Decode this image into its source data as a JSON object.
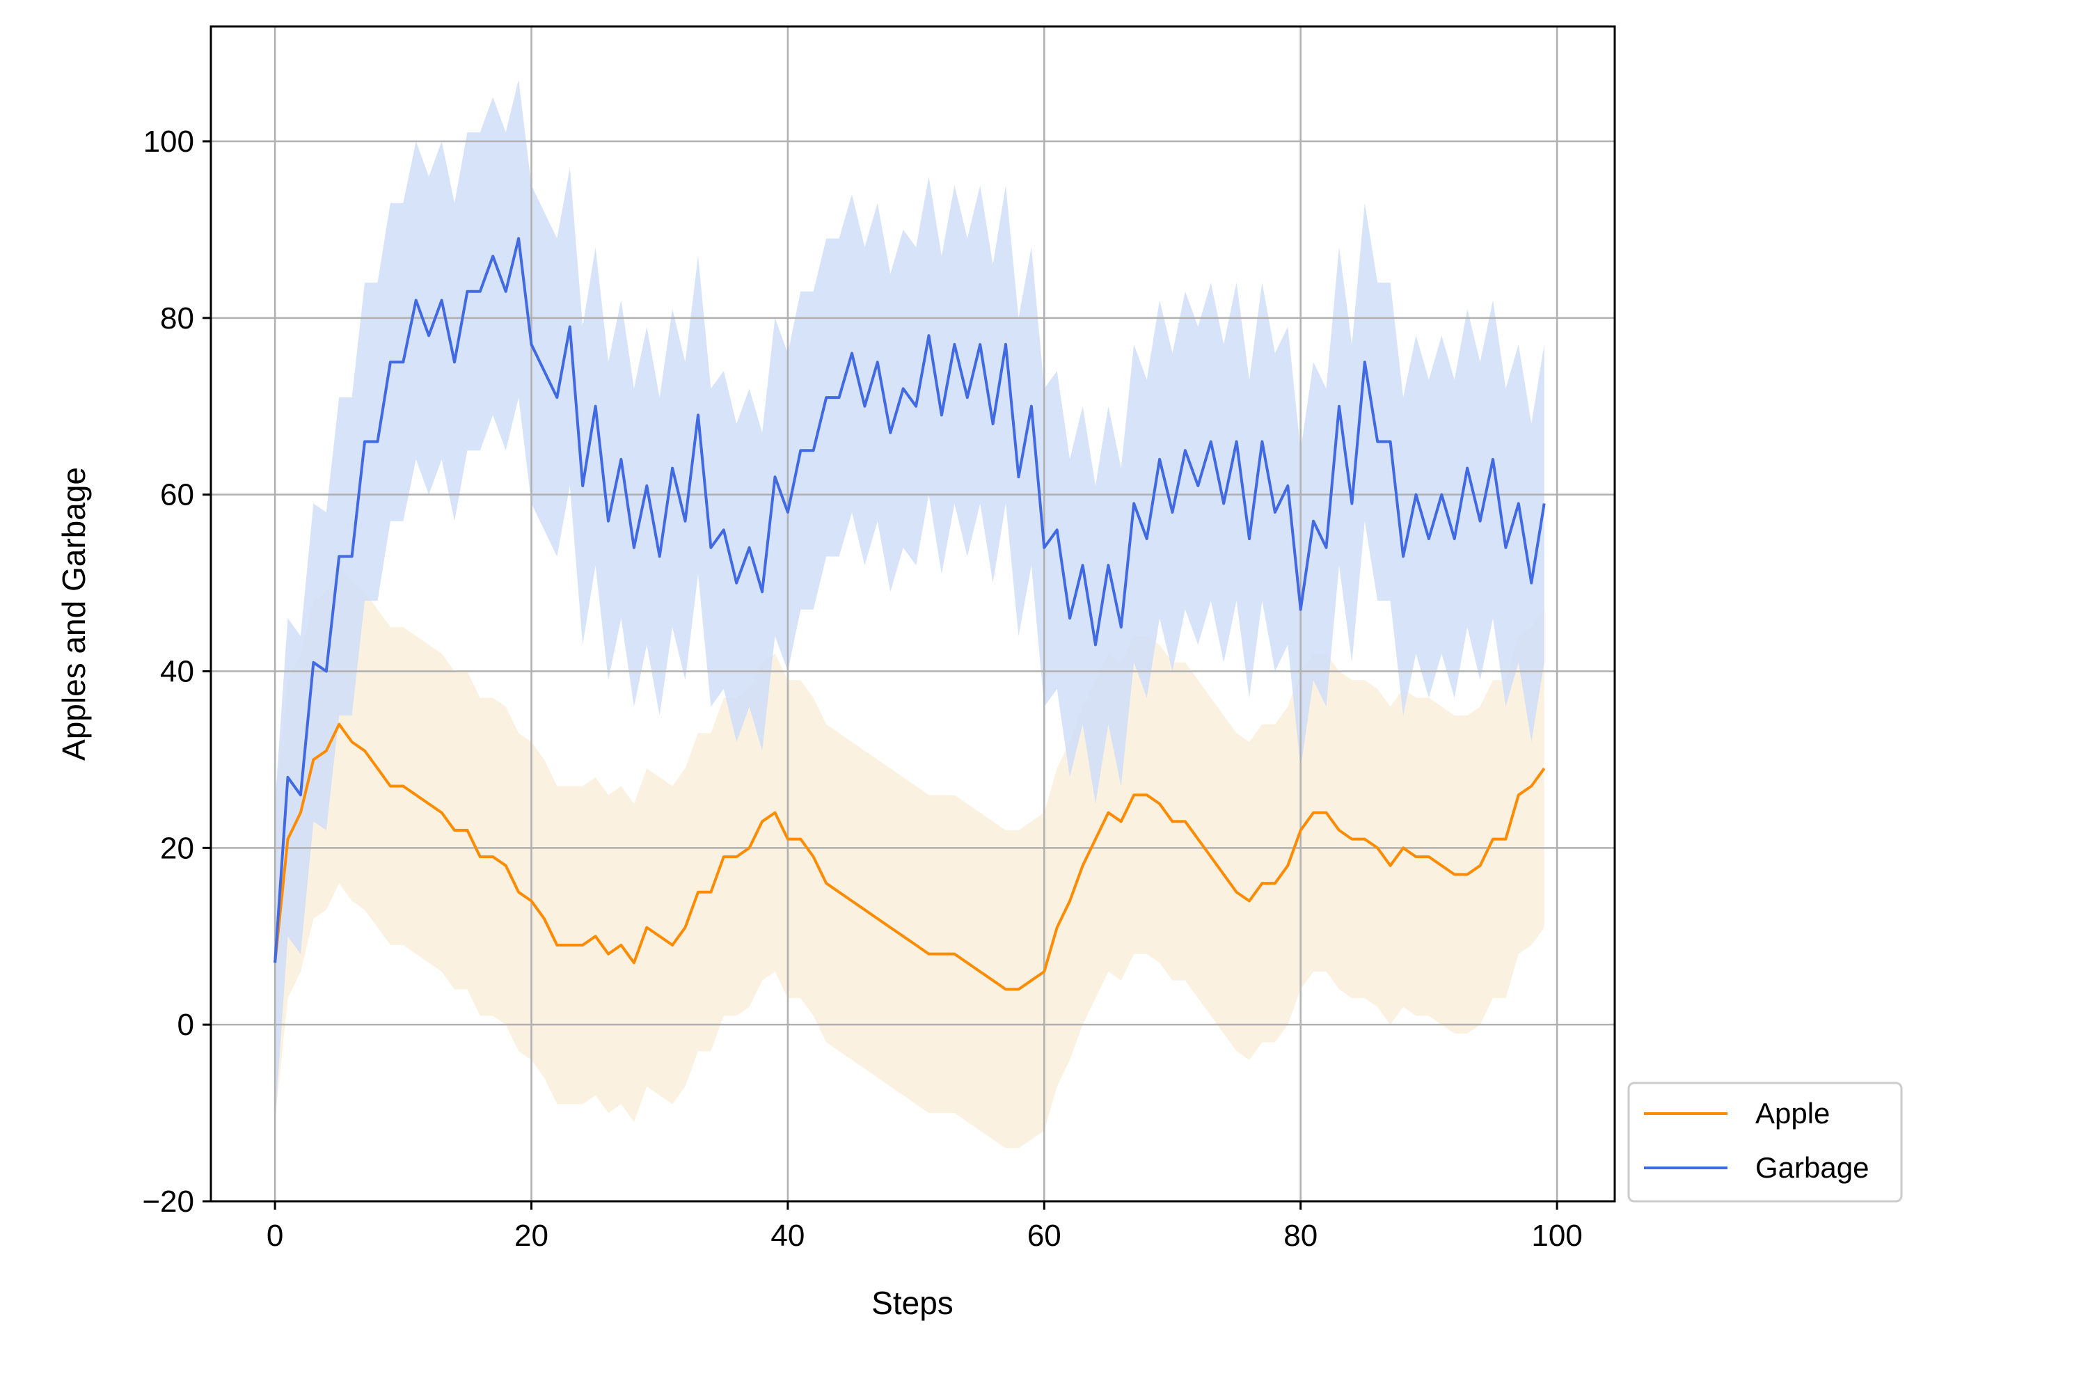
{
  "chart_data": {
    "type": "line",
    "title": "",
    "xlabel": "Steps",
    "ylabel": "Apples and Garbage",
    "xlim": [
      -5,
      104.5
    ],
    "ylim": [
      -20,
      113
    ],
    "xticks": [
      0,
      20,
      40,
      60,
      80,
      100
    ],
    "yticks": [
      -20,
      0,
      20,
      40,
      60,
      80,
      100
    ],
    "xtick_labels": [
      "0",
      "20",
      "40",
      "60",
      "80",
      "100"
    ],
    "ytick_labels": [
      "−20",
      "0",
      "20",
      "40",
      "60",
      "80",
      "100"
    ],
    "grid": true,
    "legend_position": "outside-bottom-right",
    "series": [
      {
        "name": "Apple",
        "color": "#ff8c00",
        "band_color": "#faf1e0",
        "band_halfwidth": 18,
        "values": [
          7,
          21,
          24,
          30,
          31,
          34,
          32,
          31,
          29,
          27,
          27,
          26,
          25,
          24,
          22,
          22,
          19,
          19,
          18,
          15,
          14,
          12,
          9,
          9,
          9,
          10,
          8,
          9,
          7,
          11,
          10,
          9,
          11,
          15,
          15,
          19,
          19,
          20,
          23,
          24,
          21,
          21,
          19,
          16,
          15,
          14,
          13,
          12,
          11,
          10,
          9,
          8,
          8,
          8,
          7,
          6,
          5,
          4,
          4,
          5,
          6,
          11,
          14,
          18,
          21,
          24,
          23,
          26,
          26,
          25,
          23,
          23,
          21,
          19,
          17,
          15,
          14,
          16,
          16,
          18,
          22,
          24,
          24,
          22,
          21,
          21,
          20,
          18,
          20,
          19,
          19,
          18,
          17,
          17,
          18,
          21,
          21,
          26,
          27,
          29
        ]
      },
      {
        "name": "Garbage",
        "color": "#4169e1",
        "band_color": "#cfdef8",
        "band_halfwidth": 18,
        "values": [
          7,
          28,
          26,
          41,
          40,
          53,
          53,
          66,
          66,
          75,
          75,
          82,
          78,
          82,
          75,
          83,
          83,
          87,
          83,
          89,
          77,
          74,
          71,
          79,
          61,
          70,
          57,
          64,
          54,
          61,
          53,
          63,
          57,
          69,
          54,
          56,
          50,
          54,
          49,
          62,
          58,
          65,
          65,
          71,
          71,
          76,
          70,
          75,
          67,
          72,
          70,
          78,
          69,
          77,
          71,
          77,
          68,
          77,
          62,
          70,
          54,
          56,
          46,
          52,
          43,
          52,
          45,
          59,
          55,
          64,
          58,
          65,
          61,
          66,
          59,
          66,
          55,
          66,
          58,
          61,
          47,
          57,
          54,
          70,
          59,
          75,
          66,
          66,
          53,
          60,
          55,
          60,
          55,
          63,
          57,
          64,
          54,
          59,
          50,
          59
        ]
      }
    ]
  }
}
